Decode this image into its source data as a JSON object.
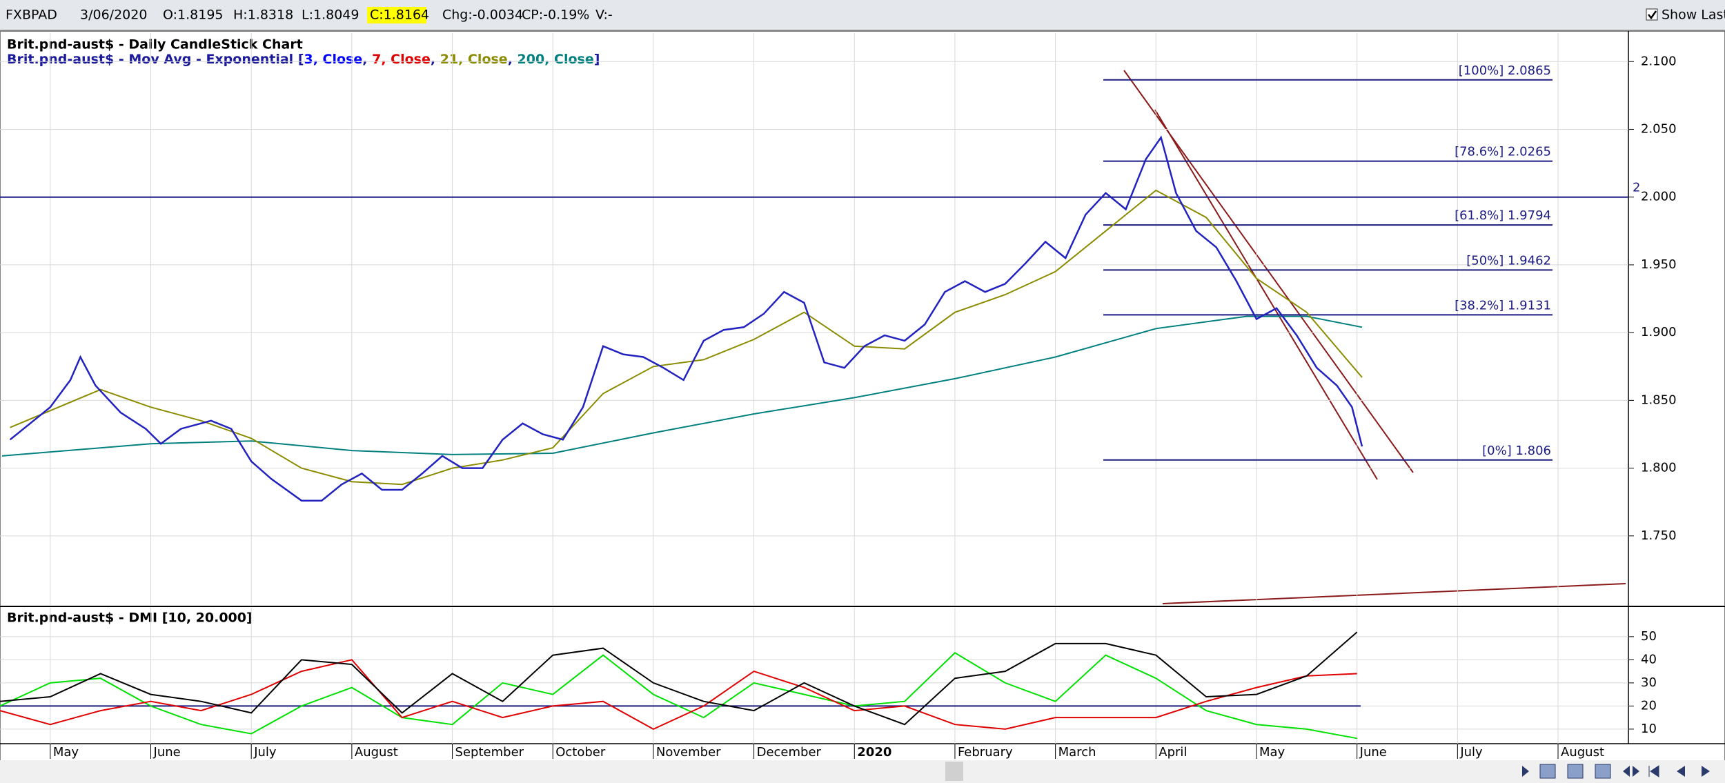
{
  "toolbar": {
    "items": [
      "FXBPAD",
      "3/06/2020",
      "O:1.8195",
      "H:1.8318",
      "L:1.8049",
      "C:1.8164",
      "Chg:-0.0034",
      "CP:-0.19%",
      "V:-"
    ],
    "highlight": 5,
    "show_last": {
      "label": "Show Last",
      "checked": true
    }
  },
  "x_axis": {
    "xlim": [
      -0.5,
      15.7
    ],
    "xticks": [
      {
        "value": 0,
        "label": "May"
      },
      {
        "value": 1,
        "label": "June"
      },
      {
        "value": 2,
        "label": "July"
      },
      {
        "value": 3,
        "label": "August"
      },
      {
        "value": 4,
        "label": "September"
      },
      {
        "value": 5,
        "label": "October"
      },
      {
        "value": 6,
        "label": "November"
      },
      {
        "value": 7,
        "label": "December"
      },
      {
        "value": 8,
        "label": "2020",
        "bold": true
      },
      {
        "value": 9,
        "label": "February"
      },
      {
        "value": 10,
        "label": "March"
      },
      {
        "value": 11,
        "label": "April"
      },
      {
        "value": 12,
        "label": "May"
      },
      {
        "value": 13,
        "label": "June"
      },
      {
        "value": 14,
        "label": "July"
      },
      {
        "value": 15,
        "label": "August"
      }
    ],
    "grid": true
  },
  "chart_data": [
    {
      "type": "line",
      "title": "Brit.pnd-aust$ - Daily CandleStick Chart",
      "legend": [
        {
          "text": "Brit.pnd-aust$ - Mov Avg - Exponential [",
          "color": "#1a1a9a"
        },
        {
          "text": "3, Close",
          "color": "#0000ff"
        },
        {
          "text": ", ",
          "color": "#1a1a9a"
        },
        {
          "text": "7, Close",
          "color": "#e00000"
        },
        {
          "text": ", ",
          "color": "#1a1a9a"
        },
        {
          "text": "21, Close",
          "color": "#8b8b00"
        },
        {
          "text": ", ",
          "color": "#1a1a9a"
        },
        {
          "text": "200, Close",
          "color": "#00807f"
        },
        {
          "text": "]",
          "color": "#1a1a9a"
        }
      ],
      "ylim": [
        1.699,
        2.121
      ],
      "yticks": [
        {
          "value": 2.1,
          "label": "2.100"
        },
        {
          "value": 2.05,
          "label": "2.050"
        },
        {
          "value": 2.0,
          "label": "2.000"
        },
        {
          "value": 1.95,
          "label": "1.950"
        },
        {
          "value": 1.9,
          "label": "1.900"
        },
        {
          "value": 1.85,
          "label": "1.850"
        },
        {
          "value": 1.8,
          "label": "1.800"
        },
        {
          "value": 1.75,
          "label": "1.750"
        }
      ],
      "grid": true,
      "hline": 2,
      "fib_levels": [
        {
          "value": 2.0865,
          "label": "[100%] 2.0865"
        },
        {
          "value": 2.0265,
          "label": "[78.6%] 2.0265"
        },
        {
          "value": 1.9794,
          "label": "[61.8%] 1.9794"
        },
        {
          "value": 1.9462,
          "label": "[50%] 1.9462"
        },
        {
          "value": 1.9131,
          "label": "[38.2%] 1.9131"
        },
        {
          "value": 1.806,
          "label": "[0%] 1.806"
        }
      ],
      "series": [
        {
          "color": "#00807f",
          "x": [
            -0.48,
            1,
            2,
            3,
            4,
            5,
            6,
            7,
            8,
            9,
            10,
            11,
            11.9,
            12.5,
            13.05
          ],
          "values": [
            1.809,
            1.818,
            1.82,
            1.813,
            1.81,
            1.811,
            1.826,
            1.84,
            1.852,
            1.866,
            1.882,
            1.903,
            1.912,
            1.912,
            1.904
          ]
        },
        {
          "color": "#8b8b00",
          "x": [
            -0.4,
            0.5,
            1,
            1.5,
            2,
            2.5,
            3,
            3.5,
            4,
            4.5,
            5,
            5.5,
            6,
            6.5,
            7,
            7.5,
            8,
            8.5,
            9,
            9.5,
            10,
            10.5,
            11,
            11.5,
            12,
            12.5,
            13.05
          ],
          "values": [
            1.83,
            1.858,
            1.845,
            1.835,
            1.822,
            1.8,
            1.79,
            1.788,
            1.8,
            1.806,
            1.815,
            1.855,
            1.875,
            1.88,
            1.895,
            1.915,
            1.89,
            1.888,
            1.915,
            1.928,
            1.945,
            1.975,
            2.005,
            1.985,
            1.94,
            1.915,
            1.867
          ]
        },
        {
          "color": "#2222c0",
          "x": [
            -0.4,
            -0.2,
            0,
            0.2,
            0.3,
            0.45,
            0.7,
            0.95,
            1.1,
            1.3,
            1.6,
            1.8,
            2.0,
            2.2,
            2.5,
            2.7,
            2.9,
            3.1,
            3.3,
            3.5,
            3.7,
            3.9,
            4.1,
            4.3,
            4.5,
            4.7,
            4.9,
            5.1,
            5.3,
            5.5,
            5.7,
            5.9,
            6.1,
            6.3,
            6.5,
            6.7,
            6.9,
            7.1,
            7.3,
            7.5,
            7.7,
            7.9,
            8.1,
            8.3,
            8.5,
            8.7,
            8.9,
            9.1,
            9.3,
            9.5,
            9.7,
            9.9,
            10.1,
            10.3,
            10.5,
            10.7,
            10.9,
            11.05,
            11.2,
            11.4,
            11.6,
            11.8,
            12.0,
            12.2,
            12.4,
            12.6,
            12.8,
            12.95,
            13.05
          ],
          "values": [
            1.821,
            1.833,
            1.845,
            1.865,
            1.882,
            1.861,
            1.841,
            1.829,
            1.818,
            1.829,
            1.835,
            1.829,
            1.805,
            1.792,
            1.776,
            1.776,
            1.788,
            1.796,
            1.784,
            1.784,
            1.796,
            1.809,
            1.8,
            1.8,
            1.821,
            1.833,
            1.825,
            1.821,
            1.845,
            1.89,
            1.884,
            1.882,
            1.874,
            1.865,
            1.894,
            1.902,
            1.904,
            1.914,
            1.93,
            1.922,
            1.878,
            1.874,
            1.89,
            1.898,
            1.894,
            1.906,
            1.93,
            1.938,
            1.93,
            1.936,
            1.951,
            1.967,
            1.955,
            1.987,
            2.003,
            1.991,
            2.028,
            2.044,
            2.003,
            1.975,
            1.963,
            1.938,
            1.91,
            1.918,
            1.898,
            1.874,
            1.861,
            1.845,
            1.816
          ]
        }
      ]
    },
    {
      "type": "line",
      "title": "Brit.pnd-aust$ - DMI [10, 20.000]",
      "ylim": [
        3.7,
        62.5
      ],
      "yticks": [
        50,
        40,
        30,
        20,
        10
      ],
      "grid": true,
      "hline": 20,
      "x": [
        -0.5,
        0,
        0.5,
        1,
        1.5,
        2,
        2.5,
        3,
        3.5,
        4,
        4.5,
        5,
        5.5,
        6,
        6.5,
        7,
        7.5,
        8,
        8.5,
        9,
        9.5,
        10,
        10.5,
        11,
        11.5,
        12,
        12.5,
        13
      ],
      "series": [
        {
          "color": "#00e000",
          "values": [
            20,
            30,
            32,
            20,
            12,
            8,
            20,
            28,
            15,
            12,
            30,
            25,
            42,
            25,
            15,
            30,
            25,
            20,
            22,
            43,
            30,
            22,
            42,
            32,
            18,
            12,
            10,
            6
          ]
        },
        {
          "color": "#e00000",
          "values": [
            18,
            12,
            18,
            22,
            18,
            25,
            35,
            40,
            15,
            22,
            15,
            20,
            22,
            10,
            20,
            35,
            28,
            18,
            20,
            12,
            10,
            15,
            15,
            15,
            22,
            28,
            33,
            34
          ]
        },
        {
          "color": "#000000",
          "values": [
            22,
            24,
            34,
            25,
            22,
            17,
            40,
            38,
            17,
            34,
            22,
            42,
            45,
            30,
            22,
            18,
            30,
            20,
            12,
            32,
            35,
            47,
            47,
            42,
            24,
            25,
            33,
            52
          ]
        }
      ]
    }
  ]
}
